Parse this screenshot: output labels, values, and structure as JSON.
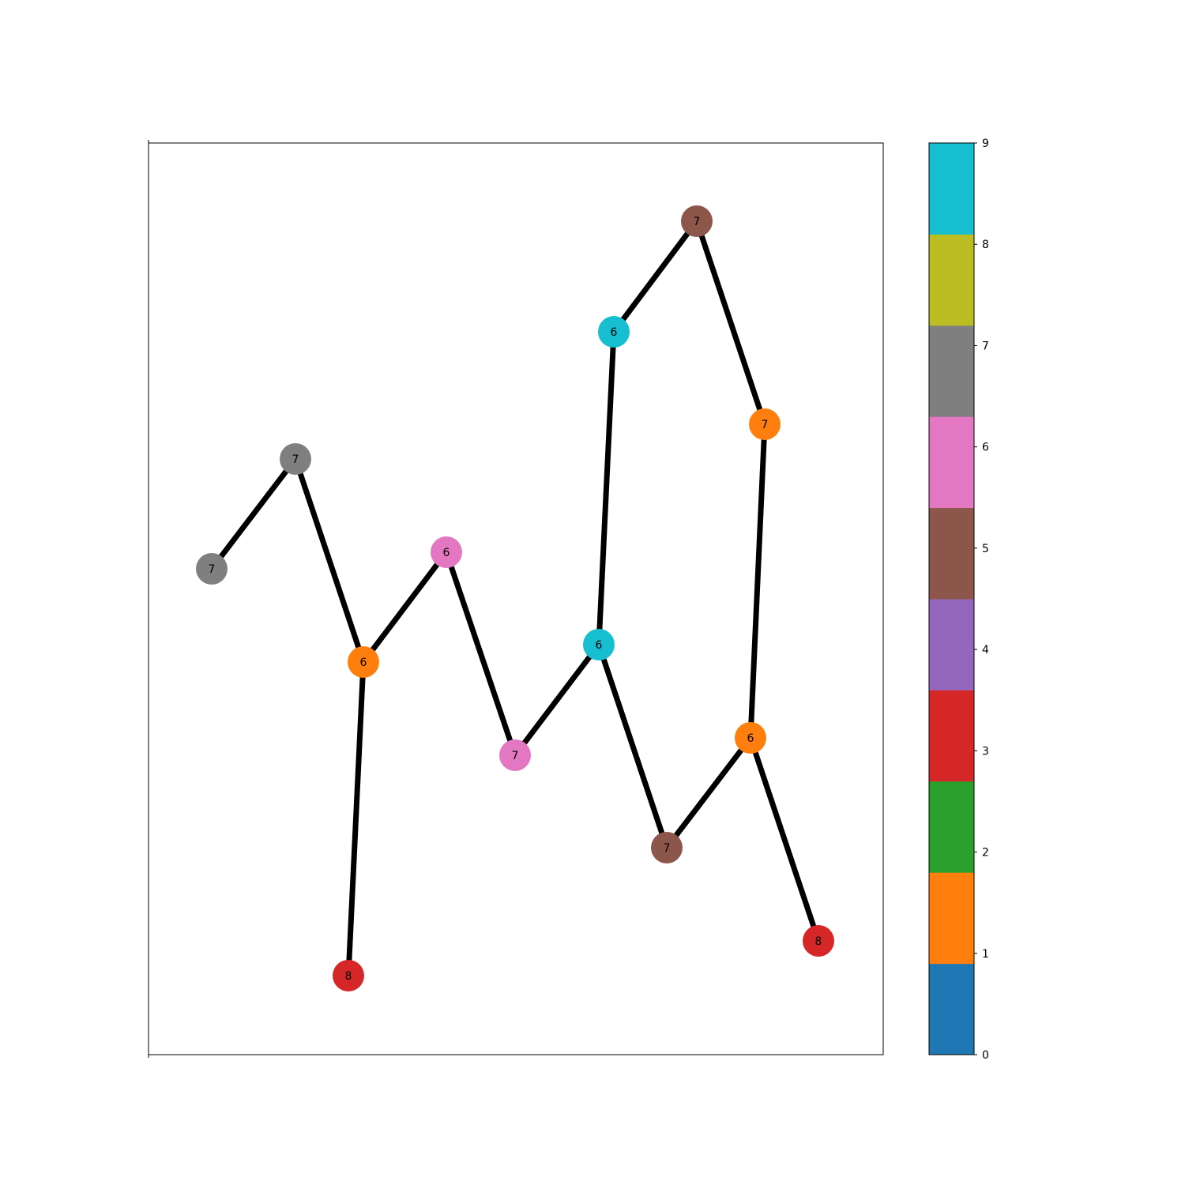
{
  "graph": {
    "nodes": [
      {
        "id": "n0",
        "label": "7",
        "color_index": 7
      },
      {
        "id": "n1",
        "label": "7",
        "color_index": 7
      },
      {
        "id": "n2",
        "label": "6",
        "color_index": 1
      },
      {
        "id": "n3",
        "label": "8",
        "color_index": 3
      },
      {
        "id": "n4",
        "label": "6",
        "color_index": 6
      },
      {
        "id": "n5",
        "label": "7",
        "color_index": 6
      },
      {
        "id": "n6",
        "label": "6",
        "color_index": 9
      },
      {
        "id": "n7",
        "label": "6",
        "color_index": 9
      },
      {
        "id": "n8",
        "label": "7",
        "color_index": 5
      },
      {
        "id": "n9",
        "label": "7",
        "color_index": 1
      },
      {
        "id": "n10",
        "label": "6",
        "color_index": 1
      },
      {
        "id": "n11",
        "label": "7",
        "color_index": 5
      },
      {
        "id": "n12",
        "label": "8",
        "color_index": 3
      }
    ],
    "edges": [
      [
        "n0",
        "n1"
      ],
      [
        "n1",
        "n2"
      ],
      [
        "n2",
        "n3"
      ],
      [
        "n2",
        "n4"
      ],
      [
        "n4",
        "n5"
      ],
      [
        "n5",
        "n6"
      ],
      [
        "n6",
        "n7"
      ],
      [
        "n7",
        "n8"
      ],
      [
        "n8",
        "n9"
      ],
      [
        "n9",
        "n10"
      ],
      [
        "n6",
        "n11"
      ],
      [
        "n11",
        "n10"
      ],
      [
        "n10",
        "n12"
      ]
    ]
  },
  "colorbar": {
    "ticks": [
      "0",
      "1",
      "2",
      "3",
      "4",
      "5",
      "6",
      "7",
      "8",
      "9"
    ],
    "colors": [
      "#1f77b4",
      "#ff7f0e",
      "#2ca02c",
      "#d62728",
      "#9467bd",
      "#8c564b",
      "#e377c2",
      "#7f7f7f",
      "#bcbd22",
      "#17becf"
    ]
  },
  "edge_color": "#000000"
}
